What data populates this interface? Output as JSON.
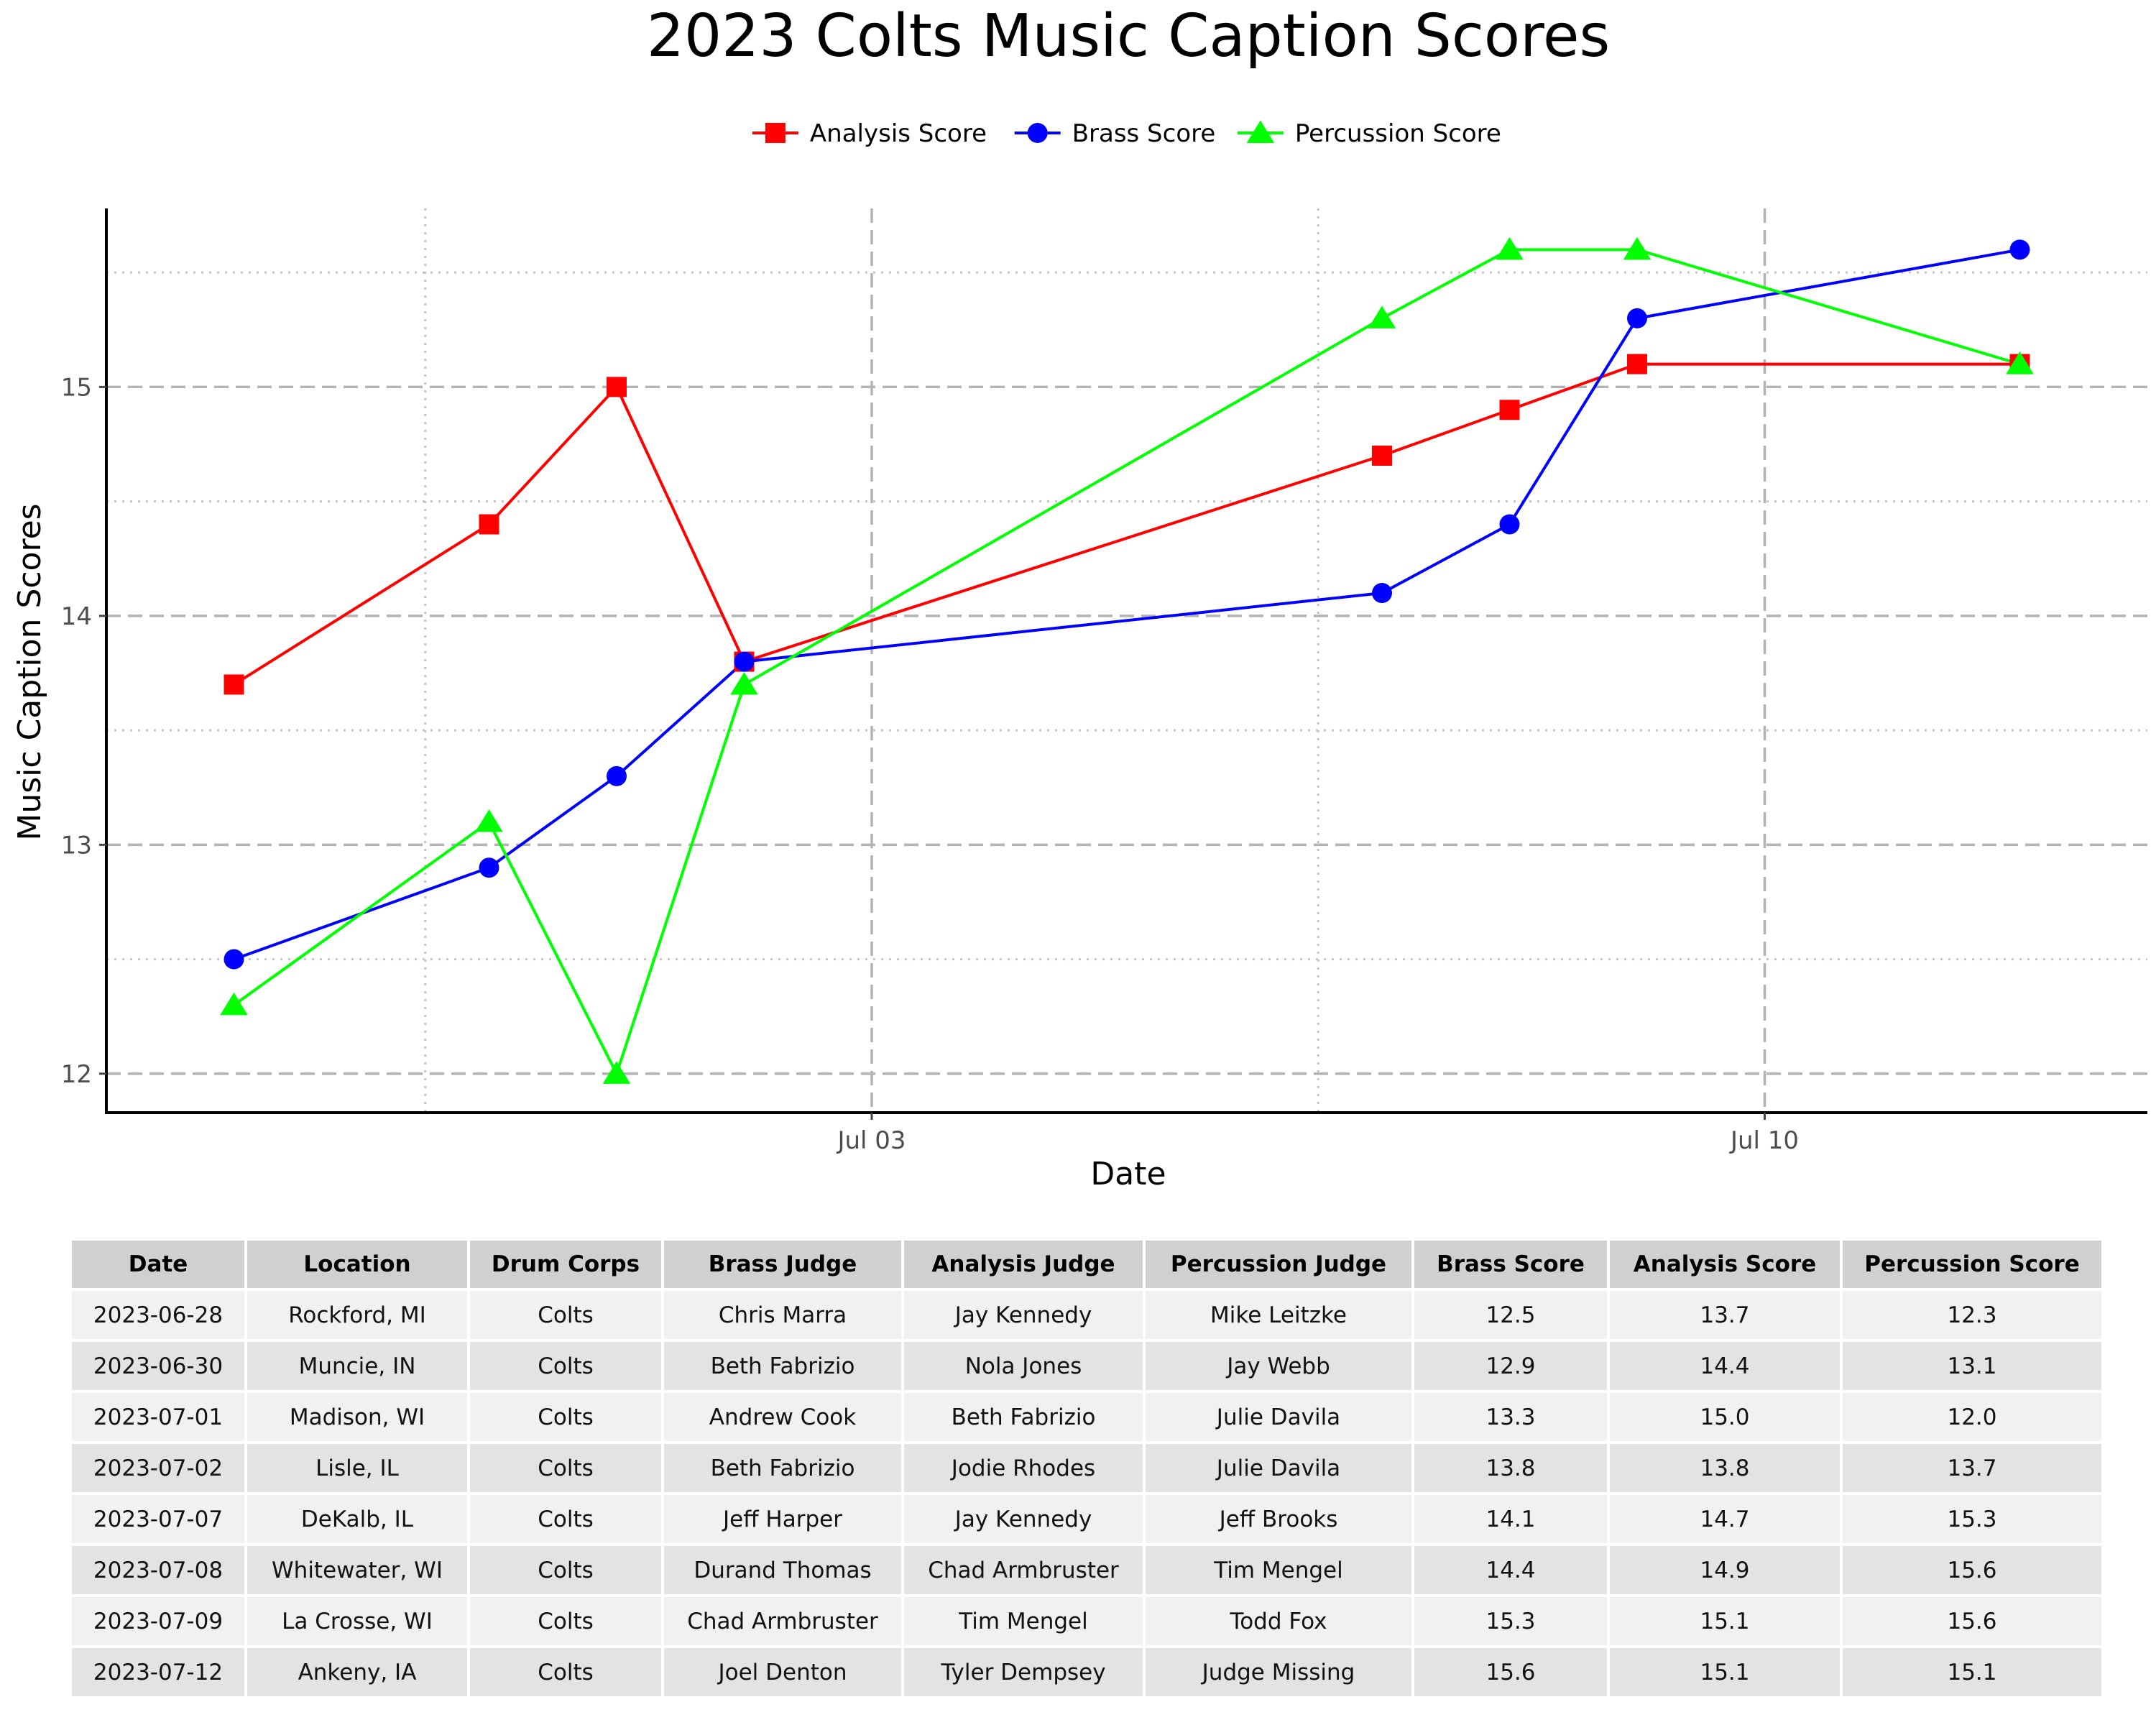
{
  "chart_data": {
    "type": "line",
    "title": "2023 Colts Music Caption Scores",
    "xlabel": "Date",
    "ylabel": "Music Caption Scores",
    "x": [
      "2023-06-28",
      "2023-06-30",
      "2023-07-01",
      "2023-07-02",
      "2023-07-07",
      "2023-07-08",
      "2023-07-09",
      "2023-07-12"
    ],
    "xlim": [
      "2023-06-27",
      "2023-07-13"
    ],
    "xticks": [
      "2023-07-03",
      "2023-07-10"
    ],
    "xtick_labels": [
      "Jul 03",
      "Jul 10"
    ],
    "ylim": [
      11.83,
      15.78
    ],
    "yticks": [
      12,
      13,
      14,
      15
    ],
    "grid": true,
    "legend_position": "top",
    "series": [
      {
        "name": "Analysis Score",
        "color": "#ff0000",
        "marker": "square",
        "values": [
          13.7,
          14.4,
          15.0,
          13.8,
          14.7,
          14.9,
          15.1,
          15.1
        ]
      },
      {
        "name": "Brass Score",
        "color": "#0000ff",
        "marker": "circle",
        "values": [
          12.5,
          12.9,
          13.3,
          13.8,
          14.1,
          14.4,
          15.3,
          15.6
        ]
      },
      {
        "name": "Percussion Score",
        "color": "#00ff00",
        "marker": "triangle",
        "values": [
          12.3,
          13.1,
          12.0,
          13.7,
          15.3,
          15.6,
          15.6,
          15.1
        ]
      }
    ]
  },
  "table": {
    "headers": [
      "Date",
      "Location",
      "Drum Corps",
      "Brass Judge",
      "Analysis Judge",
      "Percussion Judge",
      "Brass Score",
      "Analysis Score",
      "Percussion Score"
    ],
    "rows": [
      [
        "2023-06-28",
        "Rockford, MI",
        "Colts",
        "Chris Marra",
        "Jay Kennedy",
        "Mike Leitzke",
        "12.5",
        "13.7",
        "12.3"
      ],
      [
        "2023-06-30",
        "Muncie, IN",
        "Colts",
        "Beth Fabrizio",
        "Nola Jones",
        "Jay Webb",
        "12.9",
        "14.4",
        "13.1"
      ],
      [
        "2023-07-01",
        "Madison, WI",
        "Colts",
        "Andrew Cook",
        "Beth Fabrizio",
        "Julie Davila",
        "13.3",
        "15.0",
        "12.0"
      ],
      [
        "2023-07-02",
        "Lisle, IL",
        "Colts",
        "Beth Fabrizio",
        "Jodie Rhodes",
        "Julie Davila",
        "13.8",
        "13.8",
        "13.7"
      ],
      [
        "2023-07-07",
        "DeKalb, IL",
        "Colts",
        "Jeff Harper",
        "Jay Kennedy",
        "Jeff Brooks",
        "14.1",
        "14.7",
        "15.3"
      ],
      [
        "2023-07-08",
        "Whitewater, WI",
        "Colts",
        "Durand Thomas",
        "Chad Armbruster",
        "Tim Mengel",
        "14.4",
        "14.9",
        "15.6"
      ],
      [
        "2023-07-09",
        "La Crosse, WI",
        "Colts",
        "Chad Armbruster",
        "Tim Mengel",
        "Todd Fox",
        "15.3",
        "15.1",
        "15.6"
      ],
      [
        "2023-07-12",
        "Ankeny, IA",
        "Colts",
        "Joel Denton",
        "Tyler Dempsey",
        "Judge Missing",
        "15.6",
        "15.1",
        "15.1"
      ]
    ]
  }
}
